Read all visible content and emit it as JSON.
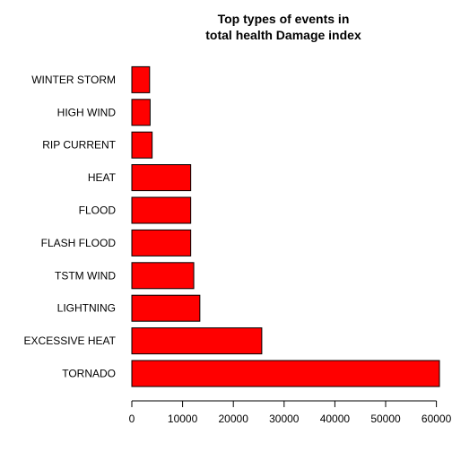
{
  "chart_data": {
    "type": "bar",
    "orientation": "horizontal",
    "title_lines": [
      "Top types of events in",
      "total health Damage index"
    ],
    "categories": [
      "TORNADO",
      "EXCESSIVE HEAT",
      "LIGHTNING",
      "TSTM WIND",
      "FLASH FLOOD",
      "FLOOD",
      "HEAT",
      "RIP CURRENT",
      "HIGH WIND",
      "WINTER STORM"
    ],
    "values": [
      60600,
      25600,
      13400,
      12200,
      11600,
      11600,
      11600,
      4000,
      3600,
      3500
    ],
    "xlim": [
      0,
      60600
    ],
    "xticks": [
      0,
      10000,
      20000,
      30000,
      40000,
      50000,
      60000
    ],
    "bar_color": "#ff0000",
    "grid": false,
    "legend": "none"
  }
}
